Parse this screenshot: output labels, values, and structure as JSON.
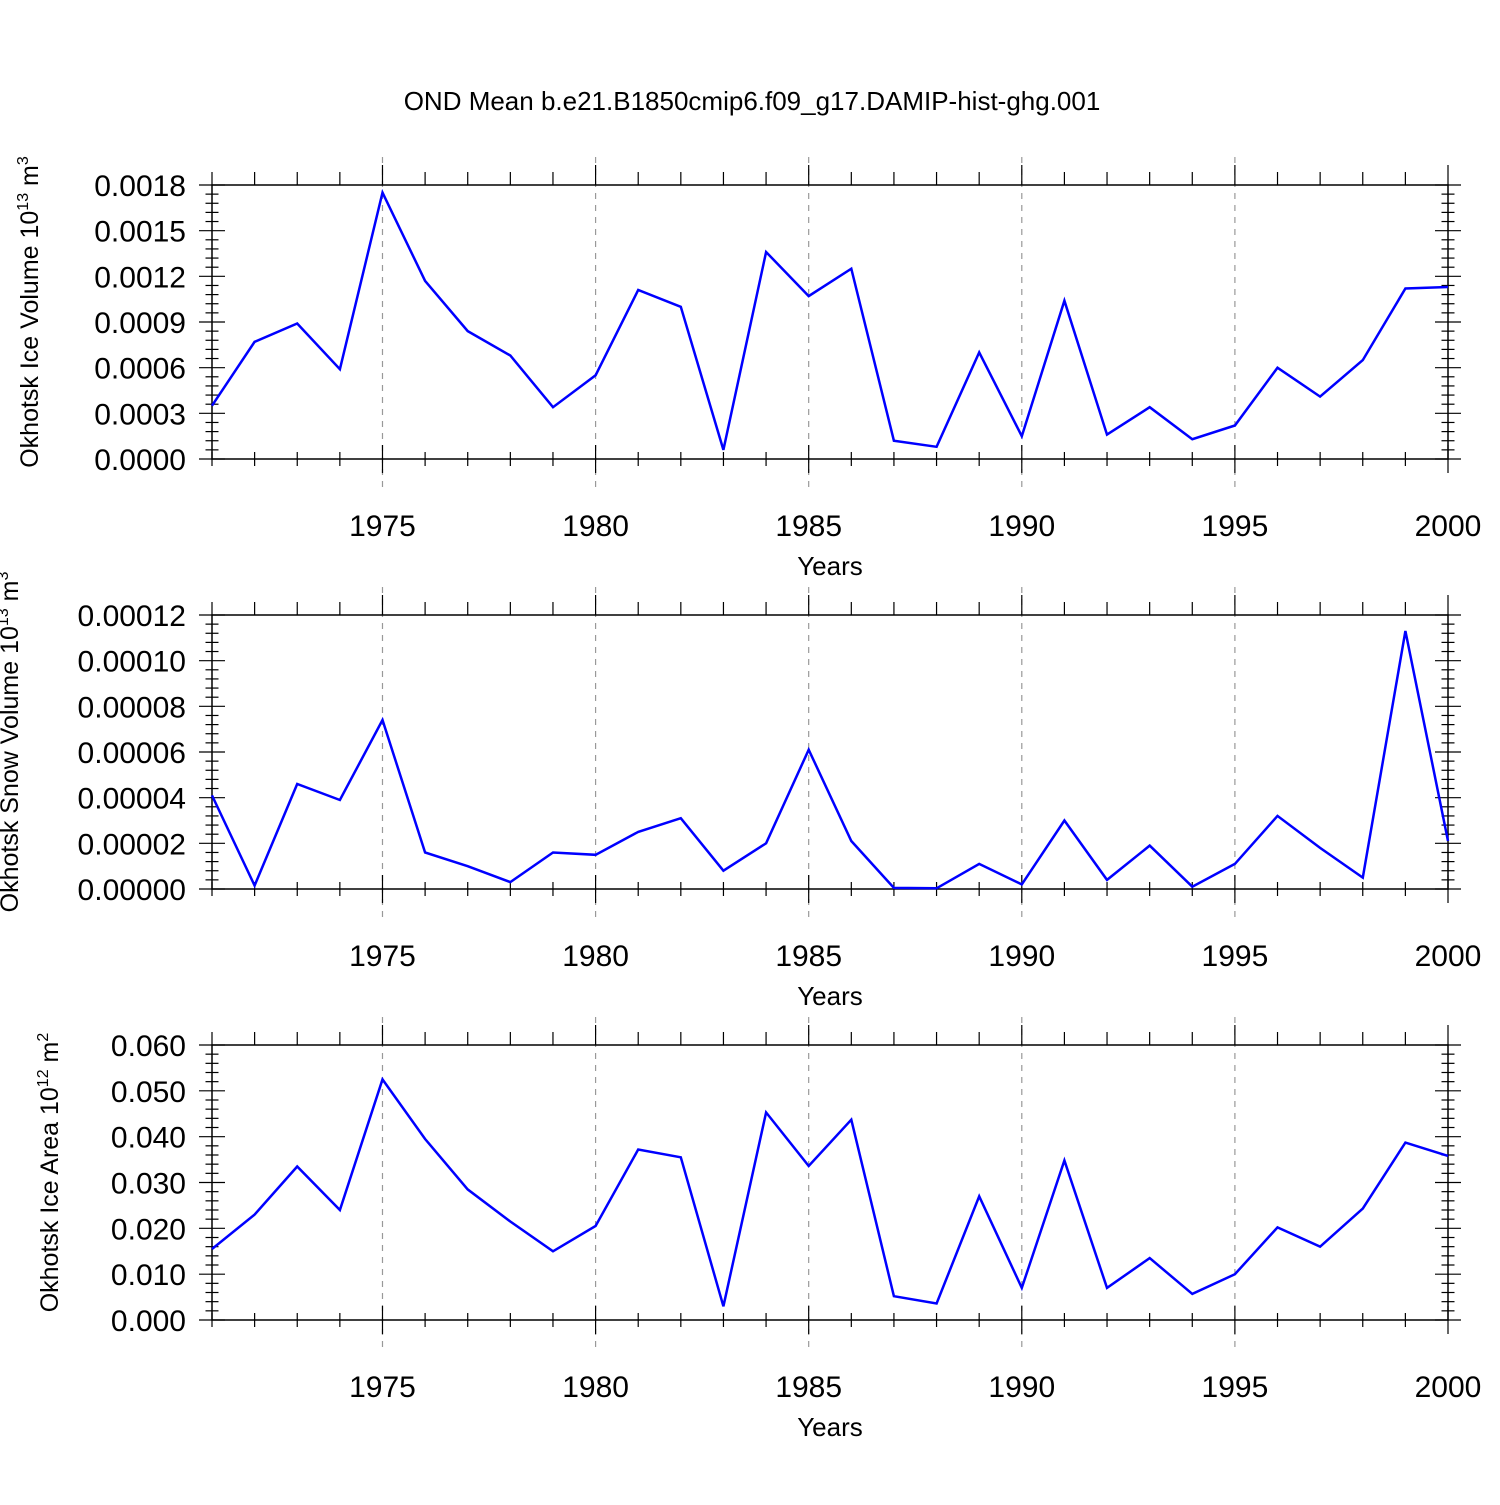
{
  "figure_title": "OND Mean b.e21.B1850cmip6.f09_g17.DAMIP-hist-ghg.001",
  "chart_data": [
    {
      "type": "line",
      "ylabel_text": "Okhotsk Ice Volume 10",
      "ylabel_exp": "13",
      "ylabel_unit": "m",
      "ylabel_unit_exp": "3",
      "xlabel": "Years",
      "xlim": [
        1971,
        2000
      ],
      "ylim": [
        0,
        0.0018
      ],
      "x_ticks": [
        1975,
        1980,
        1985,
        1990,
        1995,
        2000
      ],
      "y_ticks": [
        "0.0000",
        "0.0003",
        "0.0006",
        "0.0009",
        "0.0012",
        "0.0015",
        "0.0018"
      ],
      "line_color": "#0000ff",
      "series": [
        {
          "name": "Okhotsk Ice Volume",
          "x": [
            1971,
            1972,
            1973,
            1974,
            1975,
            1976,
            1977,
            1978,
            1979,
            1980,
            1981,
            1982,
            1983,
            1984,
            1985,
            1986,
            1987,
            1988,
            1989,
            1990,
            1991,
            1992,
            1993,
            1994,
            1995,
            1996,
            1997,
            1998,
            1999,
            2000
          ],
          "values": [
            0.00035,
            0.00077,
            0.00089,
            0.00059,
            0.00175,
            0.00117,
            0.00084,
            0.00068,
            0.00034,
            0.00055,
            0.00111,
            0.001,
            6e-05,
            0.00136,
            0.00107,
            0.00125,
            0.00012,
            8e-05,
            0.0007,
            0.00015,
            0.00104,
            0.00016,
            0.00034,
            0.00013,
            0.00022,
            0.0006,
            0.00041,
            0.00065,
            0.00112,
            0.00113
          ]
        }
      ]
    },
    {
      "type": "line",
      "ylabel_text": "Okhotsk Snow Volume 10",
      "ylabel_exp": "13",
      "ylabel_unit": "m",
      "ylabel_unit_exp": "3",
      "xlabel": "Years",
      "xlim": [
        1971,
        2000
      ],
      "ylim": [
        0,
        0.00012
      ],
      "x_ticks": [
        1975,
        1980,
        1985,
        1990,
        1995,
        2000
      ],
      "y_ticks": [
        "0.00000",
        "0.00002",
        "0.00004",
        "0.00006",
        "0.00008",
        "0.00010",
        "0.00012"
      ],
      "line_color": "#0000ff",
      "series": [
        {
          "name": "Okhotsk Snow Volume",
          "x": [
            1971,
            1972,
            1973,
            1974,
            1975,
            1976,
            1977,
            1978,
            1979,
            1980,
            1981,
            1982,
            1983,
            1984,
            1985,
            1986,
            1987,
            1988,
            1989,
            1990,
            1991,
            1992,
            1993,
            1994,
            1995,
            1996,
            1997,
            1998,
            1999,
            2000
          ],
          "values": [
            4.1e-05,
            1.5e-06,
            4.6e-05,
            3.9e-05,
            7.4e-05,
            1.6e-05,
            1e-05,
            3e-06,
            1.6e-05,
            1.5e-05,
            2.5e-05,
            3.1e-05,
            8e-06,
            2e-05,
            6.1e-05,
            2.1e-05,
            5e-07,
            3e-07,
            1.1e-05,
            2e-06,
            3e-05,
            4e-06,
            1.9e-05,
            1e-06,
            1.1e-05,
            3.2e-05,
            1.8e-05,
            5e-06,
            0.000113,
            2.1e-05
          ]
        }
      ]
    },
    {
      "type": "line",
      "ylabel_text": "Okhotsk Ice Area 10",
      "ylabel_exp": "12",
      "ylabel_unit": "m",
      "ylabel_unit_exp": "2",
      "xlabel": "Years",
      "xlim": [
        1971,
        2000
      ],
      "ylim": [
        0,
        0.06
      ],
      "x_ticks": [
        1975,
        1980,
        1985,
        1990,
        1995,
        2000
      ],
      "y_ticks": [
        "0.000",
        "0.010",
        "0.020",
        "0.030",
        "0.040",
        "0.050",
        "0.060"
      ],
      "line_color": "#0000ff",
      "series": [
        {
          "name": "Okhotsk Ice Area",
          "x": [
            1971,
            1972,
            1973,
            1974,
            1975,
            1976,
            1977,
            1978,
            1979,
            1980,
            1981,
            1982,
            1983,
            1984,
            1985,
            1986,
            1987,
            1988,
            1989,
            1990,
            1991,
            1992,
            1993,
            1994,
            1995,
            1996,
            1997,
            1998,
            1999,
            2000
          ],
          "values": [
            0.0155,
            0.023,
            0.0335,
            0.024,
            0.0525,
            0.0395,
            0.0285,
            0.0215,
            0.015,
            0.0205,
            0.0372,
            0.0355,
            0.003,
            0.0453,
            0.0336,
            0.0437,
            0.0052,
            0.0036,
            0.027,
            0.007,
            0.0348,
            0.007,
            0.0135,
            0.0057,
            0.01,
            0.0202,
            0.016,
            0.0243,
            0.0387,
            0.0358
          ]
        }
      ]
    }
  ]
}
